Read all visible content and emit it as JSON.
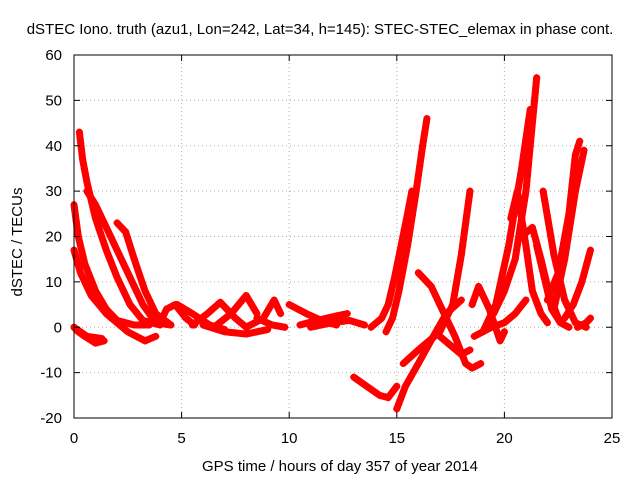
{
  "chart_data": {
    "type": "scatter",
    "title": "dSTEC Iono. truth (azu1, Lon=242, Lat=34, h=145): STEC-STEC_elemax in phase cont.",
    "xlabel": "GPS time / hours of day 357 of year 2014",
    "ylabel": "dSTEC  / TECUs",
    "xlim": [
      0,
      25
    ],
    "ylim": [
      -20,
      60
    ],
    "x_ticks": [
      "0",
      "5",
      "10",
      "15",
      "20",
      "25"
    ],
    "y_ticks": [
      "-20",
      "-10",
      "0",
      "10",
      "20",
      "30",
      "40",
      "50",
      "60"
    ],
    "grid": true,
    "legend": "none",
    "marker": "plus",
    "series_color": "#ff0000",
    "series": [
      {
        "points": [
          [
            0.0,
            27
          ],
          [
            0.2,
            20
          ],
          [
            0.5,
            14
          ],
          [
            1.0,
            8
          ],
          [
            1.5,
            4
          ],
          [
            2.0,
            1.5
          ],
          [
            2.8,
            0.5
          ],
          [
            3.5,
            0.5
          ]
        ]
      },
      {
        "points": [
          [
            0.25,
            43
          ],
          [
            0.4,
            37
          ],
          [
            0.6,
            32
          ],
          [
            1.0,
            24
          ],
          [
            1.5,
            17
          ],
          [
            2.0,
            11
          ],
          [
            2.6,
            5
          ],
          [
            3.2,
            1.5
          ],
          [
            4.0,
            0.5
          ]
        ]
      },
      {
        "points": [
          [
            0.0,
            17
          ],
          [
            0.3,
            12
          ],
          [
            0.8,
            7
          ],
          [
            1.5,
            3
          ],
          [
            2.5,
            -1
          ],
          [
            3.3,
            -3
          ],
          [
            3.8,
            -2
          ]
        ]
      },
      {
        "points": [
          [
            0.6,
            30
          ],
          [
            1.0,
            27
          ],
          [
            1.8,
            19
          ],
          [
            2.5,
            12
          ],
          [
            3.2,
            5
          ],
          [
            3.8,
            1
          ],
          [
            4.5,
            0.5
          ]
        ]
      },
      {
        "points": [
          [
            2.0,
            23
          ],
          [
            2.4,
            21
          ],
          [
            2.8,
            15
          ],
          [
            3.3,
            8
          ],
          [
            3.8,
            3
          ],
          [
            4.5,
            0.5
          ]
        ]
      },
      {
        "points": [
          [
            0.0,
            0
          ],
          [
            0.2,
            -1
          ],
          [
            0.5,
            -2
          ],
          [
            1.0,
            -3.5
          ],
          [
            1.4,
            -3
          ]
        ]
      },
      {
        "points": [
          [
            0.0,
            0
          ],
          [
            0.6,
            -2
          ],
          [
            1.3,
            -2.5
          ]
        ]
      },
      {
        "points": [
          [
            4.0,
            1
          ],
          [
            4.3,
            4
          ],
          [
            4.7,
            5
          ],
          [
            5.2,
            2
          ],
          [
            5.6,
            0.5
          ]
        ]
      },
      {
        "points": [
          [
            4.8,
            5
          ],
          [
            5.5,
            3
          ],
          [
            6.3,
            0.5
          ],
          [
            7.0,
            -0.5
          ]
        ]
      },
      {
        "points": [
          [
            5.5,
            0.5
          ],
          [
            6.2,
            3
          ],
          [
            6.8,
            5.5
          ],
          [
            7.5,
            2
          ],
          [
            8.0,
            0
          ]
        ]
      },
      {
        "points": [
          [
            6.5,
            0
          ],
          [
            7.3,
            3
          ],
          [
            8.0,
            7
          ],
          [
            8.5,
            3
          ]
        ]
      },
      {
        "points": [
          [
            6.0,
            0.5
          ],
          [
            7.0,
            -1
          ],
          [
            8.0,
            -1.5
          ],
          [
            9.0,
            -0.5
          ]
        ]
      },
      {
        "points": [
          [
            8.0,
            0
          ],
          [
            8.8,
            2
          ],
          [
            9.3,
            6
          ],
          [
            9.6,
            3
          ]
        ]
      },
      {
        "points": [
          [
            8.5,
            2
          ],
          [
            9.2,
            0.5
          ],
          [
            9.8,
            0
          ]
        ]
      },
      {
        "points": [
          [
            10.0,
            5
          ],
          [
            10.8,
            3
          ],
          [
            11.5,
            1.5
          ],
          [
            12.2,
            0.5
          ]
        ]
      },
      {
        "points": [
          [
            10.5,
            0.5
          ],
          [
            11.3,
            1.5
          ],
          [
            12.2,
            2.5
          ],
          [
            12.7,
            3
          ]
        ]
      },
      {
        "points": [
          [
            11.0,
            0
          ],
          [
            12.0,
            1
          ],
          [
            12.8,
            1.5
          ],
          [
            13.5,
            0.5
          ]
        ]
      },
      {
        "points": [
          [
            13.0,
            -11
          ],
          [
            13.6,
            -13
          ],
          [
            14.2,
            -15
          ],
          [
            14.6,
            -15.5
          ],
          [
            15.0,
            -13
          ]
        ]
      },
      {
        "points": [
          [
            13.8,
            0
          ],
          [
            14.3,
            2
          ],
          [
            14.6,
            5
          ],
          [
            14.9,
            11
          ],
          [
            15.2,
            18
          ],
          [
            15.5,
            25
          ],
          [
            15.7,
            30
          ]
        ]
      },
      {
        "points": [
          [
            14.5,
            -1
          ],
          [
            14.8,
            2
          ],
          [
            15.1,
            8
          ],
          [
            15.5,
            18
          ],
          [
            15.9,
            30
          ],
          [
            16.2,
            40
          ],
          [
            16.4,
            46
          ]
        ]
      },
      {
        "points": [
          [
            15.0,
            -18
          ],
          [
            15.4,
            -13
          ],
          [
            16.0,
            -8
          ],
          [
            16.7,
            -2
          ],
          [
            17.3,
            3
          ],
          [
            18.0,
            6
          ]
        ]
      },
      {
        "points": [
          [
            15.3,
            -8
          ],
          [
            16.0,
            -5
          ],
          [
            17.0,
            -1
          ],
          [
            17.6,
            5
          ],
          [
            18.0,
            16
          ],
          [
            18.4,
            30
          ]
        ]
      },
      {
        "points": [
          [
            16.0,
            12
          ],
          [
            16.6,
            9
          ],
          [
            17.2,
            3
          ],
          [
            17.7,
            -2
          ],
          [
            18.2,
            -8
          ],
          [
            18.5,
            -9
          ],
          [
            18.9,
            -8
          ]
        ]
      },
      {
        "points": [
          [
            17.0,
            -2
          ],
          [
            17.5,
            -4
          ],
          [
            18.0,
            -6
          ],
          [
            18.4,
            -5
          ]
        ]
      },
      {
        "points": [
          [
            18.5,
            5
          ],
          [
            18.8,
            9
          ],
          [
            19.3,
            4
          ],
          [
            19.8,
            -3
          ],
          [
            20.0,
            -1
          ]
        ]
      },
      {
        "points": [
          [
            18.6,
            -2
          ],
          [
            19.4,
            0
          ],
          [
            20.0,
            1
          ],
          [
            20.5,
            3
          ],
          [
            21.0,
            6
          ]
        ]
      },
      {
        "points": [
          [
            19.0,
            -1
          ],
          [
            19.6,
            5
          ],
          [
            20.2,
            18
          ],
          [
            20.8,
            35
          ],
          [
            21.2,
            48
          ]
        ]
      },
      {
        "points": [
          [
            19.5,
            3
          ],
          [
            20.0,
            8
          ],
          [
            20.5,
            15
          ],
          [
            21.0,
            30
          ],
          [
            21.5,
            55
          ]
        ]
      },
      {
        "points": [
          [
            20.3,
            24
          ],
          [
            20.6,
            30
          ],
          [
            21.0,
            18
          ],
          [
            21.3,
            8
          ],
          [
            21.7,
            3
          ],
          [
            22.0,
            1
          ]
        ]
      },
      {
        "points": [
          [
            20.8,
            20
          ],
          [
            21.3,
            22
          ],
          [
            21.7,
            15
          ],
          [
            22.1,
            7
          ],
          [
            22.5,
            2
          ]
        ]
      },
      {
        "points": [
          [
            21.5,
            18
          ],
          [
            21.9,
            10
          ],
          [
            22.2,
            4
          ],
          [
            22.6,
            1
          ],
          [
            23.0,
            0
          ]
        ]
      },
      {
        "points": [
          [
            21.8,
            30
          ],
          [
            22.3,
            16
          ],
          [
            22.8,
            6
          ],
          [
            23.3,
            1
          ],
          [
            23.8,
            0
          ]
        ]
      },
      {
        "points": [
          [
            22.0,
            6
          ],
          [
            22.5,
            12
          ],
          [
            23.0,
            25
          ],
          [
            23.3,
            38
          ],
          [
            23.5,
            41
          ]
        ]
      },
      {
        "points": [
          [
            22.3,
            4
          ],
          [
            22.8,
            15
          ],
          [
            23.3,
            30
          ],
          [
            23.7,
            39
          ]
        ]
      },
      {
        "points": [
          [
            22.8,
            2
          ],
          [
            23.2,
            5
          ],
          [
            23.6,
            10
          ],
          [
            24.0,
            17
          ]
        ]
      },
      {
        "points": [
          [
            23.4,
            0
          ],
          [
            23.8,
            1
          ],
          [
            24.0,
            2
          ]
        ]
      }
    ]
  }
}
